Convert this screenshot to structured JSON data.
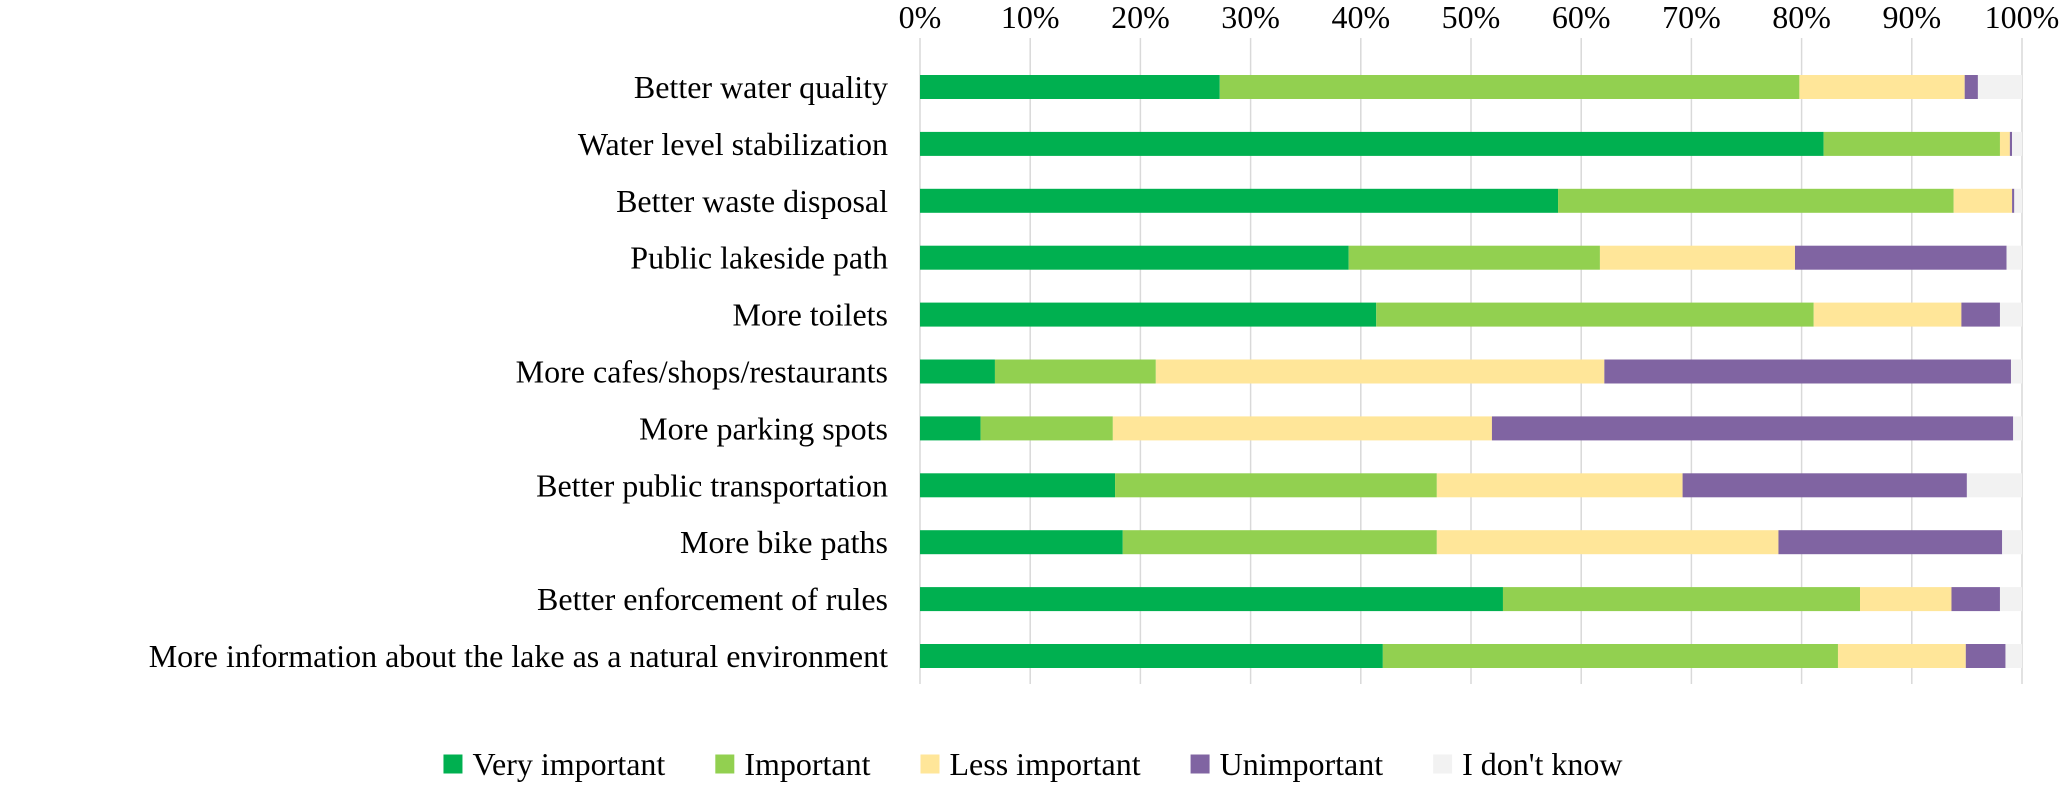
{
  "chart_data": {
    "type": "bar",
    "orientation": "horizontal",
    "stacked": true,
    "title": "",
    "xlabel": "",
    "ylabel": "",
    "xlim": [
      0,
      100
    ],
    "x_ticks": [
      "0%",
      "10%",
      "20%",
      "30%",
      "40%",
      "50%",
      "60%",
      "70%",
      "80%",
      "90%",
      "100%"
    ],
    "x_axis_position": "top",
    "grid": true,
    "legend_position": "bottom",
    "categories": [
      "Better water quality",
      "Water level stabilization",
      "Better waste disposal",
      "Public lakeside path",
      "More toilets",
      "More cafes/shops/restaurants",
      "More parking spots",
      "Better public transportation",
      "More bike paths",
      "Better enforcement of rules",
      "More information about the lake as a natural environment"
    ],
    "series": [
      {
        "name": "Very important",
        "color": "#00b050",
        "values": [
          27.2,
          82.0,
          57.9,
          38.9,
          41.4,
          6.8,
          5.5,
          17.7,
          18.4,
          52.9,
          42.0
        ]
      },
      {
        "name": "Important",
        "color": "#92d050",
        "values": [
          52.6,
          16.0,
          35.9,
          22.8,
          39.7,
          14.6,
          12.0,
          29.2,
          28.5,
          32.4,
          41.3
        ]
      },
      {
        "name": "Less important",
        "color": "#ffe699",
        "values": [
          15.0,
          0.9,
          5.3,
          17.7,
          13.4,
          40.7,
          34.4,
          22.3,
          31.0,
          8.3,
          11.6
        ]
      },
      {
        "name": "Unimportant",
        "color": "#8064a2",
        "values": [
          1.2,
          0.2,
          0.2,
          19.2,
          3.5,
          36.9,
          47.3,
          25.8,
          20.3,
          4.4,
          3.6
        ]
      },
      {
        "name": "I don't know",
        "color": "#f2f2f2",
        "values": [
          4.0,
          0.9,
          0.7,
          1.4,
          2.0,
          1.0,
          0.8,
          5.0,
          1.8,
          2.0,
          1.5
        ]
      }
    ]
  }
}
